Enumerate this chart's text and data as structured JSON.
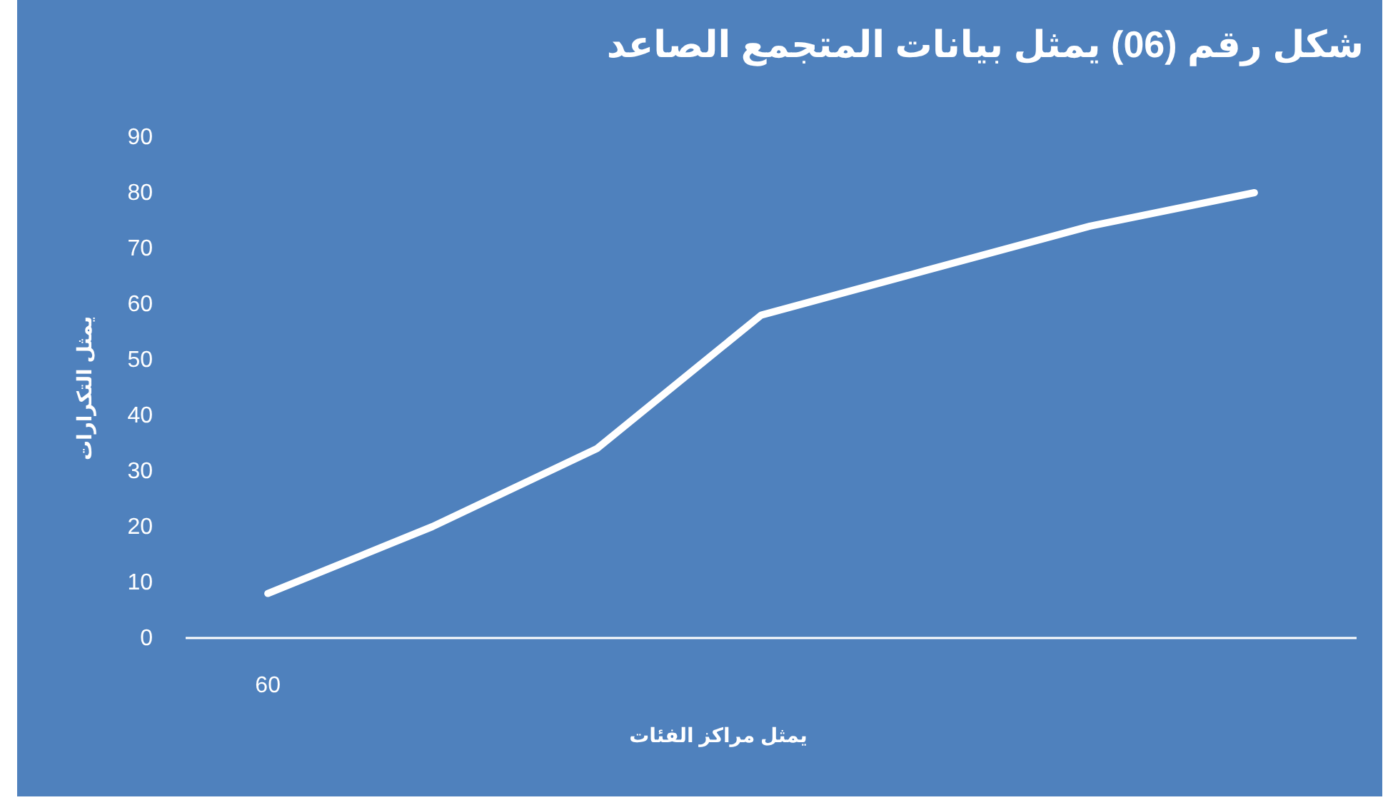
{
  "chart_data": {
    "type": "line",
    "title": "شكل رقم (06) يمثل بيانات المتجمع الصاعد",
    "xlabel": "يمثل مراكز الفئات",
    "ylabel": "يمثل التكرارات",
    "categories": [
      "60",
      null,
      null,
      null,
      null,
      null,
      null
    ],
    "values": [
      8,
      20,
      34,
      58,
      66,
      74,
      80
    ],
    "color": "#ffffff",
    "ylim": [
      0,
      90
    ],
    "yticks": [
      0,
      10,
      20,
      30,
      40,
      50,
      60,
      70,
      80,
      90
    ]
  }
}
